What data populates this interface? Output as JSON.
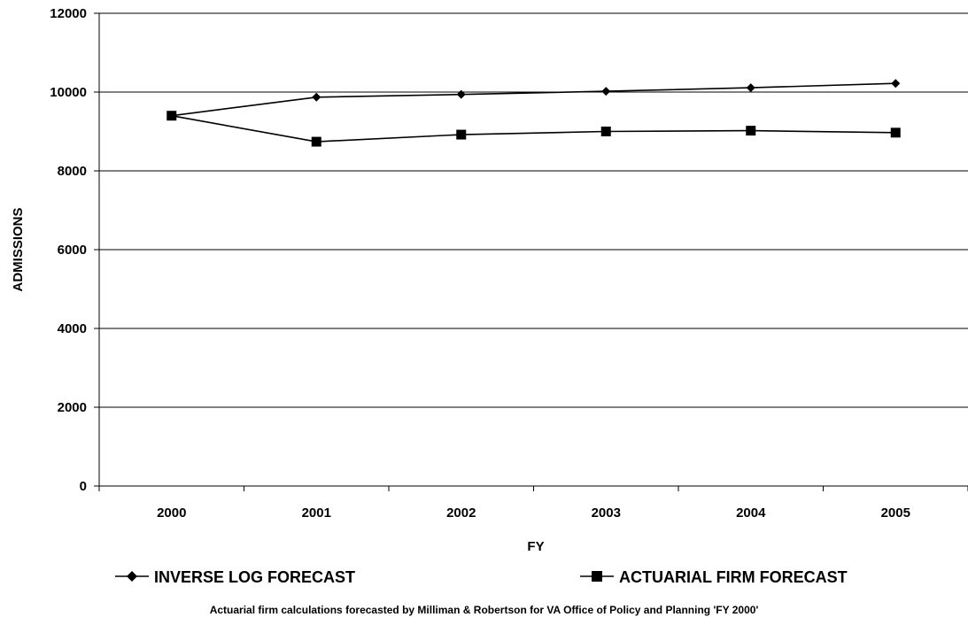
{
  "chart_data": {
    "type": "line",
    "title": "",
    "xlabel": "FY",
    "ylabel": "ADMISSIONS",
    "categories": [
      "2000",
      "2001",
      "2002",
      "2003",
      "2004",
      "2005"
    ],
    "ylim": [
      0,
      12000
    ],
    "yticks": [
      0,
      2000,
      4000,
      6000,
      8000,
      10000,
      12000
    ],
    "grid": "horizontal",
    "legend_position": "bottom",
    "series": [
      {
        "name": "INVERSE LOG FORECAST",
        "marker": "diamond",
        "color": "#000000",
        "values": [
          9400,
          9870,
          9940,
          10020,
          10110,
          10220
        ]
      },
      {
        "name": "ACTUARIAL FIRM FORECAST",
        "marker": "square",
        "color": "#000000",
        "values": [
          9400,
          8740,
          8920,
          9000,
          9020,
          8970
        ]
      }
    ]
  },
  "footnote": "Actuarial firm calculations forecasted by Milliman & Robertson for VA Office of Policy and Planning 'FY 2000'"
}
